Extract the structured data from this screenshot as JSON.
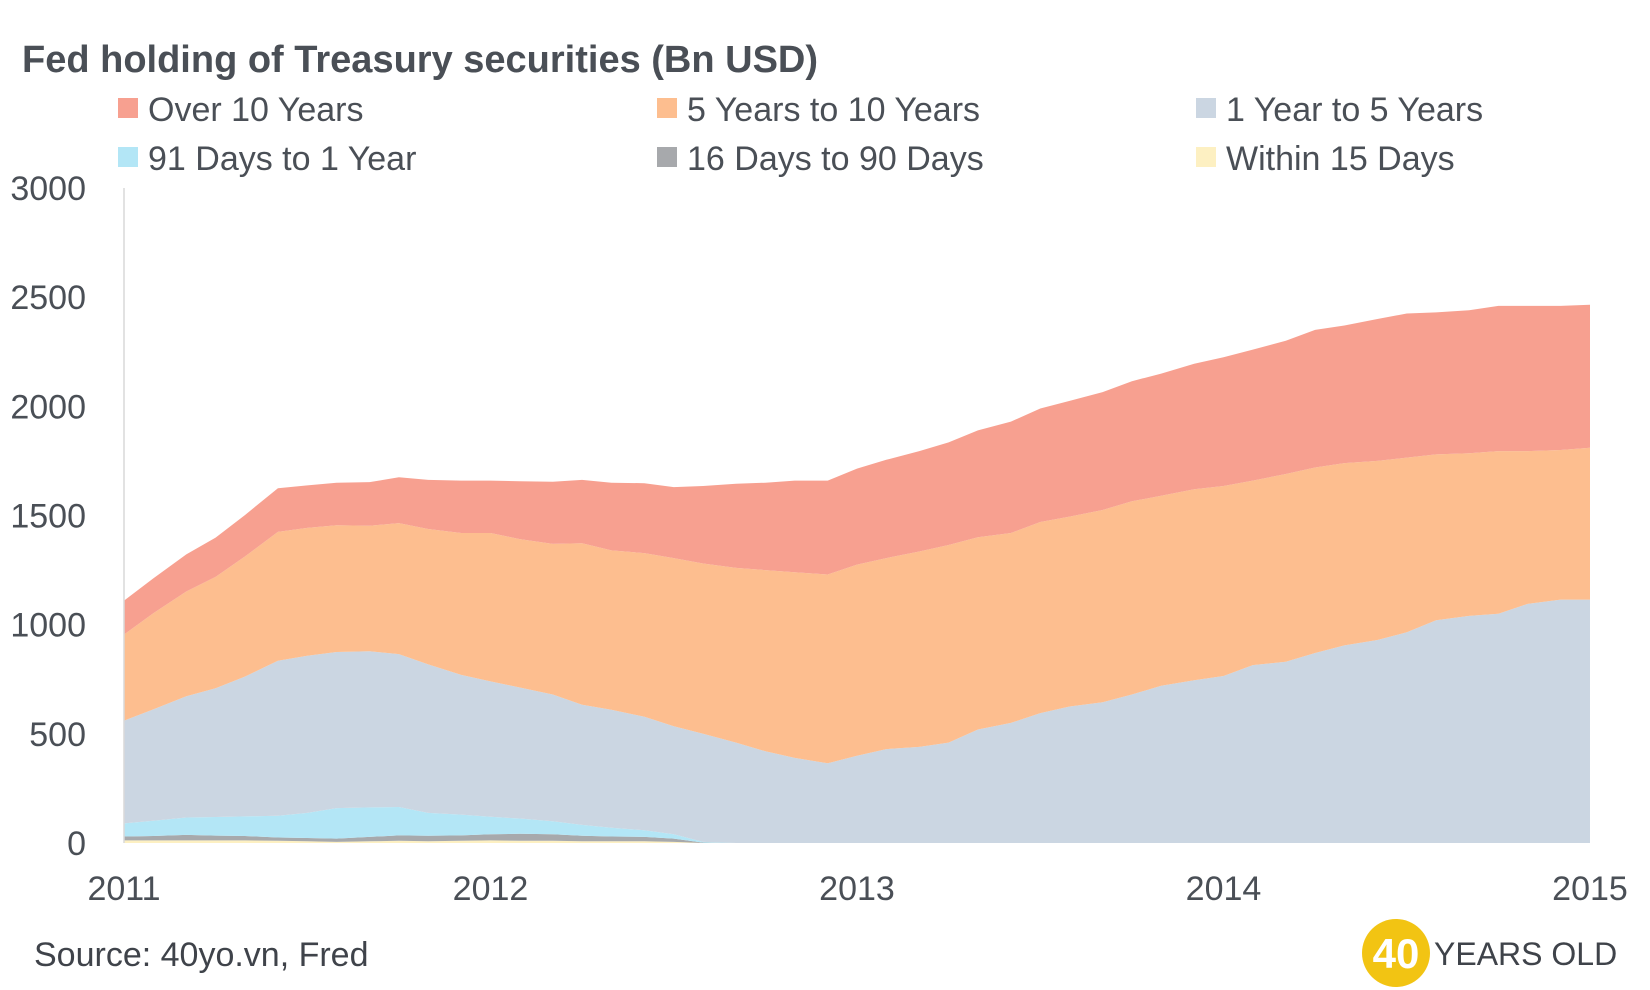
{
  "chart_data": {
    "type": "area",
    "stacked": true,
    "title": "Fed holding of Treasury securities (Bn USD)",
    "xlabel": "",
    "ylabel": "",
    "xlim": [
      2011,
      2015
    ],
    "ylim": [
      0,
      3000
    ],
    "x_ticks": [
      "2011",
      "2012",
      "2013",
      "2014",
      "2015"
    ],
    "y_ticks": [
      "0",
      "500",
      "1000",
      "1500",
      "2000",
      "2500",
      "3000"
    ],
    "legend_position": "top",
    "grid": false,
    "x": [
      2011.0,
      2011.08,
      2011.17,
      2011.25,
      2011.33,
      2011.42,
      2011.5,
      2011.58,
      2011.67,
      2011.75,
      2011.83,
      2011.92,
      2012.0,
      2012.08,
      2012.17,
      2012.25,
      2012.33,
      2012.42,
      2012.5,
      2012.58,
      2012.67,
      2012.75,
      2012.83,
      2012.92,
      2013.0,
      2013.08,
      2013.17,
      2013.25,
      2013.33,
      2013.42,
      2013.5,
      2013.58,
      2013.67,
      2013.75,
      2013.83,
      2013.92,
      2014.0,
      2014.08,
      2014.17,
      2014.25,
      2014.33,
      2014.42,
      2014.5,
      2014.58,
      2014.67,
      2014.75,
      2014.83,
      2014.92,
      2015.0
    ],
    "series": [
      {
        "name": "Within 15 Days",
        "color": "#fdf0c2",
        "values": [
          12,
          12,
          12,
          12,
          12,
          10,
          8,
          5,
          8,
          10,
          8,
          10,
          12,
          10,
          10,
          8,
          8,
          8,
          5,
          0,
          0,
          0,
          0,
          0,
          0,
          0,
          0,
          0,
          0,
          0,
          0,
          0,
          0,
          0,
          0,
          0,
          0,
          0,
          0,
          0,
          0,
          0,
          0,
          0,
          0,
          0,
          0,
          0,
          0
        ]
      },
      {
        "name": "16 Days to 90 Days",
        "color": "#a7a9ac",
        "values": [
          18,
          20,
          25,
          22,
          20,
          15,
          15,
          15,
          20,
          25,
          25,
          25,
          28,
          32,
          30,
          25,
          22,
          20,
          15,
          2,
          0,
          0,
          0,
          0,
          0,
          0,
          0,
          0,
          0,
          0,
          0,
          0,
          0,
          0,
          0,
          0,
          0,
          0,
          0,
          0,
          0,
          0,
          0,
          0,
          0,
          0,
          0,
          0,
          0
        ]
      },
      {
        "name": "91 Days to 1 Year",
        "color": "#b3e6f6",
        "values": [
          60,
          70,
          80,
          85,
          90,
          100,
          115,
          140,
          135,
          130,
          105,
          95,
          80,
          70,
          60,
          50,
          40,
          30,
          20,
          3,
          0,
          0,
          0,
          0,
          0,
          0,
          0,
          0,
          0,
          0,
          0,
          0,
          0,
          0,
          0,
          0,
          0,
          0,
          0,
          0,
          0,
          0,
          0,
          0,
          0,
          0,
          0,
          0,
          0
        ]
      },
      {
        "name": "1 Year to 5 Years",
        "color": "#cbd6e2",
        "values": [
          470,
          510,
          555,
          590,
          640,
          710,
          720,
          715,
          715,
          700,
          680,
          640,
          620,
          600,
          580,
          550,
          540,
          520,
          495,
          495,
          460,
          420,
          390,
          365,
          400,
          430,
          440,
          460,
          520,
          550,
          595,
          625,
          645,
          680,
          720,
          745,
          765,
          815,
          830,
          870,
          905,
          930,
          965,
          1020,
          1040,
          1050,
          1095,
          1115,
          1115
        ]
      },
      {
        "name": "5 Years to 10 Years",
        "color": "#fdbe8f",
        "values": [
          395,
          440,
          480,
          510,
          550,
          590,
          585,
          580,
          575,
          600,
          620,
          650,
          680,
          680,
          690,
          740,
          730,
          750,
          770,
          780,
          800,
          830,
          850,
          865,
          875,
          875,
          895,
          905,
          880,
          870,
          875,
          870,
          880,
          885,
          870,
          875,
          870,
          845,
          860,
          850,
          835,
          820,
          800,
          760,
          745,
          745,
          700,
          685,
          695
        ]
      },
      {
        "name": "Over 10 Years",
        "color": "#f7a090",
        "values": [
          155,
          160,
          170,
          180,
          190,
          200,
          195,
          195,
          200,
          210,
          225,
          240,
          240,
          265,
          285,
          290,
          310,
          320,
          325,
          355,
          385,
          400,
          420,
          430,
          440,
          450,
          460,
          470,
          490,
          510,
          520,
          530,
          540,
          550,
          560,
          575,
          590,
          600,
          610,
          630,
          630,
          650,
          660,
          650,
          655,
          665,
          665,
          660,
          655
        ]
      }
    ]
  },
  "source_text": "Source: 40yo.vn, Fred",
  "brand": {
    "number": "40",
    "text": "YEARS OLD",
    "circle_color": "#f2c413"
  }
}
